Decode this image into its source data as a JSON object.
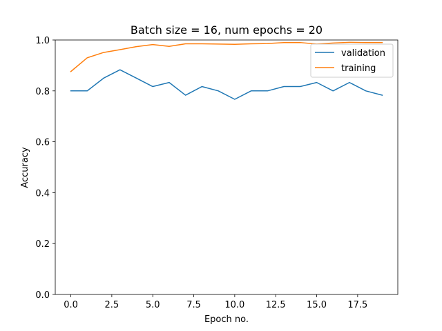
{
  "chart_data": {
    "type": "line",
    "title": "Batch size = 16, num epochs = 20",
    "xlabel": "Epoch no.",
    "ylabel": "Accuracy",
    "xlim": [
      -0.95,
      19.95
    ],
    "ylim": [
      0.0,
      1.0
    ],
    "xticks": [
      0.0,
      2.5,
      5.0,
      7.5,
      10.0,
      12.5,
      15.0,
      17.5
    ],
    "xtick_labels": [
      "0.0",
      "2.5",
      "5.0",
      "7.5",
      "10.0",
      "12.5",
      "15.0",
      "17.5"
    ],
    "yticks": [
      0.0,
      0.2,
      0.4,
      0.6,
      0.8,
      1.0
    ],
    "ytick_labels": [
      "0.0",
      "0.2",
      "0.4",
      "0.6",
      "0.8",
      "1.0"
    ],
    "grid": false,
    "legend_position": "upper right",
    "x": [
      0,
      1,
      2,
      3,
      4,
      5,
      6,
      7,
      8,
      9,
      10,
      11,
      12,
      13,
      14,
      15,
      16,
      17,
      18,
      19
    ],
    "series": [
      {
        "name": "validation",
        "color": "#1f77b4",
        "values": [
          0.8,
          0.8,
          0.85,
          0.883,
          0.85,
          0.817,
          0.833,
          0.783,
          0.817,
          0.8,
          0.767,
          0.8,
          0.8,
          0.817,
          0.817,
          0.833,
          0.8,
          0.833,
          0.8,
          0.783
        ]
      },
      {
        "name": "training",
        "color": "#ff7f0e",
        "values": [
          0.876,
          0.93,
          0.951,
          0.962,
          0.974,
          0.982,
          0.975,
          0.985,
          0.985,
          0.984,
          0.983,
          0.985,
          0.986,
          0.99,
          0.99,
          0.984,
          0.988,
          0.991,
          0.99,
          0.99
        ]
      }
    ]
  }
}
